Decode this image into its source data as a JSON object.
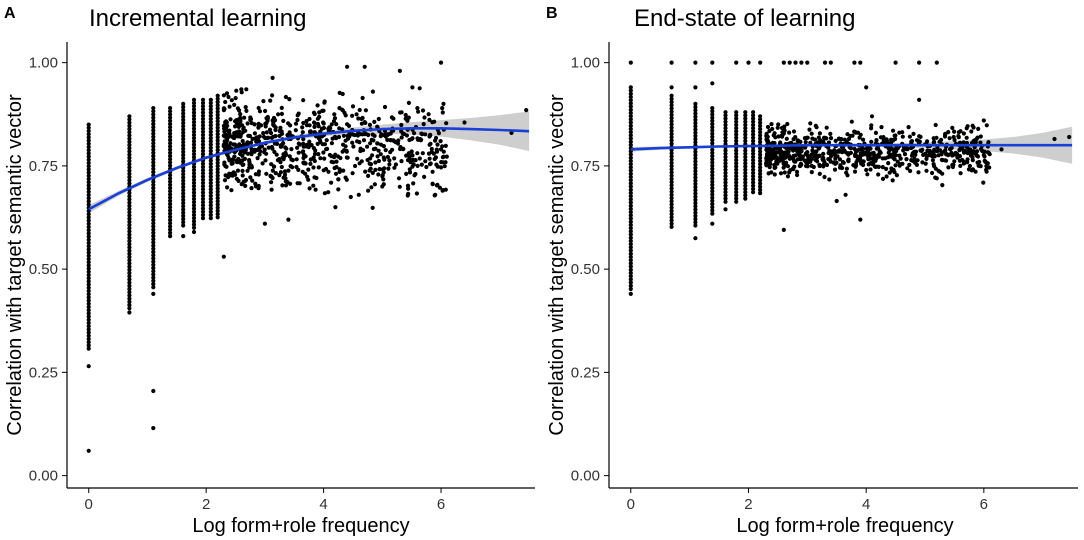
{
  "chart_data": [
    {
      "type": "scatter",
      "panel_letter": "A",
      "title": "Incremental learning",
      "xlabel": "Log form+role frequency",
      "ylabel": "Correlation with target semantic vector",
      "xlim": [
        -0.37,
        7.6
      ],
      "ylim": [
        -0.03,
        1.05
      ],
      "xticks": [
        0,
        2,
        4,
        6
      ],
      "xtick_labels": [
        "0",
        "2",
        "4",
        "6"
      ],
      "yticks": [
        0,
        0.25,
        0.5,
        0.75,
        1.0
      ],
      "ytick_labels": [
        "0.00",
        "0.25",
        "0.50",
        "0.75",
        "1.00"
      ],
      "grid": false,
      "point_color": "#000000",
      "smooth_color": "#1a3fd6",
      "band_color": "#bdbdbd",
      "smooth_fit": {
        "x": [
          0,
          0.5,
          1,
          1.5,
          2,
          2.5,
          3,
          3.5,
          4,
          4.5,
          5,
          5.5,
          6,
          6.5,
          7,
          7.5
        ],
        "y": [
          0.645,
          0.683,
          0.716,
          0.745,
          0.77,
          0.789,
          0.806,
          0.819,
          0.828,
          0.835,
          0.839,
          0.841,
          0.841,
          0.839,
          0.837,
          0.834
        ],
        "ci_half_width": [
          0.01,
          0.006,
          0.005,
          0.004,
          0.004,
          0.004,
          0.004,
          0.005,
          0.006,
          0.008,
          0.011,
          0.015,
          0.02,
          0.027,
          0.036,
          0.048
        ]
      },
      "column_points": [
        {
          "x": 0,
          "ymin": 0.3,
          "ymax": 0.85
        },
        {
          "x": 0.693,
          "ymin": 0.4,
          "ymax": 0.87
        },
        {
          "x": 1.099,
          "ymin": 0.45,
          "ymax": 0.89
        },
        {
          "x": 1.386,
          "ymin": 0.58,
          "ymax": 0.89
        },
        {
          "x": 1.609,
          "ymin": 0.6,
          "ymax": 0.9
        },
        {
          "x": 1.792,
          "ymin": 0.6,
          "ymax": 0.91
        },
        {
          "x": 1.946,
          "ymin": 0.62,
          "ymax": 0.91
        },
        {
          "x": 2.079,
          "ymin": 0.62,
          "ymax": 0.91
        },
        {
          "x": 2.197,
          "ymin": 0.62,
          "ymax": 0.92
        }
      ],
      "outlier_points": [
        [
          0,
          0.06
        ],
        [
          0,
          0.265
        ],
        [
          1.099,
          0.115
        ],
        [
          1.099,
          0.205
        ],
        [
          1.099,
          0.44
        ],
        [
          0.693,
          0.395
        ],
        [
          1.609,
          0.58
        ],
        [
          1.792,
          0.59
        ],
        [
          2.3,
          0.53
        ],
        [
          3.0,
          0.61
        ],
        [
          3.4,
          0.62
        ],
        [
          4.2,
          0.65
        ],
        [
          4.6,
          0.68
        ],
        [
          5.0,
          0.7
        ],
        [
          5.6,
          0.75
        ],
        [
          5.9,
          0.68
        ],
        [
          6.0,
          0.79
        ],
        [
          6.0,
          1.0
        ],
        [
          6.4,
          0.855
        ],
        [
          7.2,
          0.83
        ],
        [
          7.45,
          0.885
        ],
        [
          4.4,
          0.99
        ],
        [
          4.7,
          0.99
        ],
        [
          5.3,
          0.98
        ]
      ],
      "cloud": {
        "x_range": [
          2.3,
          6.1
        ],
        "center_y": 0.8,
        "spread": 0.1,
        "n": 760,
        "seed": 11
      }
    },
    {
      "type": "scatter",
      "panel_letter": "B",
      "title": "End-state of learning",
      "xlabel": "Log form+role frequency",
      "ylabel": "Correlation with target semantic vector",
      "xlim": [
        -0.37,
        7.6
      ],
      "ylim": [
        -0.03,
        1.05
      ],
      "xticks": [
        0,
        2,
        4,
        6
      ],
      "xtick_labels": [
        "0",
        "2",
        "4",
        "6"
      ],
      "yticks": [
        0,
        0.25,
        0.5,
        0.75,
        1.0
      ],
      "ytick_labels": [
        "0.00",
        "0.25",
        "0.50",
        "0.75",
        "1.00"
      ],
      "grid": false,
      "point_color": "#000000",
      "smooth_color": "#1a3fd6",
      "band_color": "#bdbdbd",
      "smooth_fit": {
        "x": [
          0,
          0.5,
          1,
          1.5,
          2,
          2.5,
          3,
          3.5,
          4,
          4.5,
          5,
          5.5,
          6,
          6.5,
          7,
          7.5
        ],
        "y": [
          0.79,
          0.793,
          0.795,
          0.797,
          0.798,
          0.799,
          0.8,
          0.8,
          0.8,
          0.8,
          0.8,
          0.8,
          0.8,
          0.8,
          0.8,
          0.8
        ],
        "ci_half_width": [
          0.006,
          0.004,
          0.003,
          0.003,
          0.003,
          0.003,
          0.003,
          0.003,
          0.004,
          0.005,
          0.007,
          0.01,
          0.014,
          0.02,
          0.03,
          0.045
        ]
      },
      "column_points": [
        {
          "x": 0,
          "ymin": 0.45,
          "ymax": 0.94
        },
        {
          "x": 0.693,
          "ymin": 0.6,
          "ymax": 0.92
        },
        {
          "x": 1.099,
          "ymin": 0.6,
          "ymax": 0.9
        },
        {
          "x": 1.386,
          "ymin": 0.63,
          "ymax": 0.89
        },
        {
          "x": 1.609,
          "ymin": 0.66,
          "ymax": 0.88
        },
        {
          "x": 1.792,
          "ymin": 0.66,
          "ymax": 0.88
        },
        {
          "x": 1.946,
          "ymin": 0.67,
          "ymax": 0.88
        },
        {
          "x": 2.079,
          "ymin": 0.68,
          "ymax": 0.88
        },
        {
          "x": 2.197,
          "ymin": 0.68,
          "ymax": 0.87
        }
      ],
      "outlier_points": [
        [
          0,
          0.44
        ],
        [
          0,
          1.0
        ],
        [
          0.693,
          1.0
        ],
        [
          1.099,
          0.575
        ],
        [
          1.386,
          0.61
        ],
        [
          1.609,
          0.645
        ],
        [
          2.6,
          0.595
        ],
        [
          3.5,
          0.665
        ],
        [
          3.9,
          0.62
        ],
        [
          3.65,
          0.68
        ],
        [
          4.0,
          0.94
        ],
        [
          4.1,
          0.87
        ],
        [
          4.9,
          0.91
        ],
        [
          4.0,
          0.74
        ],
        [
          5.2,
          0.72
        ],
        [
          5.6,
          0.75
        ],
        [
          6.3,
          0.79
        ],
        [
          7.2,
          0.815
        ],
        [
          7.45,
          0.82
        ],
        [
          6.0,
          0.86
        ],
        [
          0.693,
          0.94
        ],
        [
          1.099,
          1.0
        ],
        [
          1.386,
          1.0
        ],
        [
          1.792,
          1.0
        ],
        [
          2.0,
          1.0
        ],
        [
          2.2,
          1.0
        ],
        [
          2.6,
          1.0
        ],
        [
          2.7,
          1.0
        ],
        [
          2.8,
          1.0
        ],
        [
          2.9,
          1.0
        ],
        [
          3.0,
          1.0
        ],
        [
          3.3,
          1.0
        ],
        [
          3.4,
          1.0
        ],
        [
          3.8,
          1.0
        ],
        [
          3.9,
          1.0
        ],
        [
          4.5,
          1.0
        ],
        [
          4.9,
          1.0
        ],
        [
          5.2,
          1.0
        ],
        [
          1.099,
          0.94
        ],
        [
          1.386,
          0.95
        ]
      ],
      "cloud": {
        "x_range": [
          2.3,
          6.1
        ],
        "center_y": 0.785,
        "spread": 0.05,
        "n": 760,
        "seed": 23
      }
    }
  ]
}
